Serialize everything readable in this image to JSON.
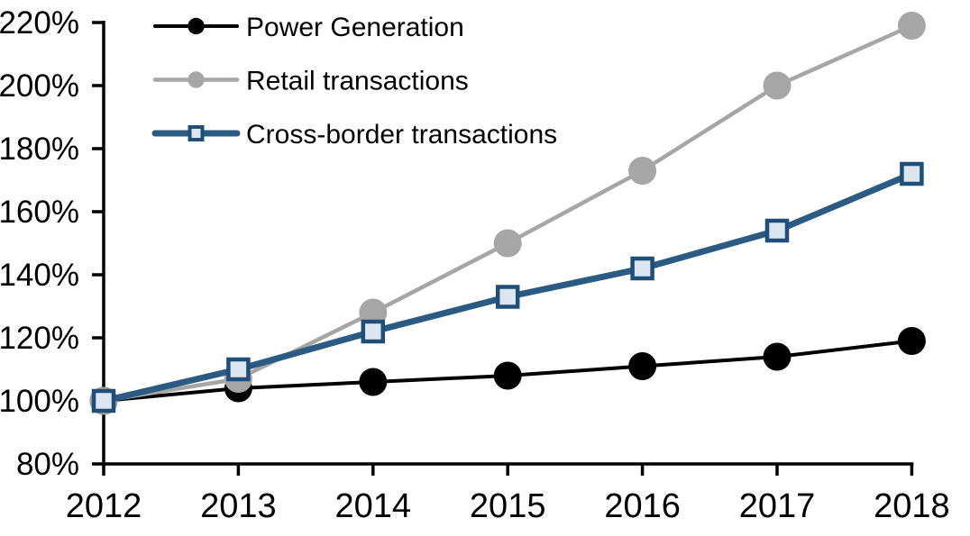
{
  "chart_data": {
    "type": "line",
    "title": "",
    "xlabel": "",
    "ylabel": "",
    "x_labels": [
      "2012",
      "2013",
      "2014",
      "2015",
      "2016",
      "2017",
      "2018"
    ],
    "y_tick_labels": [
      "80%",
      "100%",
      "120%",
      "140%",
      "160%",
      "180%",
      "200%",
      "220%"
    ],
    "ylim": [
      80,
      220
    ],
    "ytick_step": 20,
    "grid": false,
    "legend_position": "top-left",
    "background_color": "#FFFFFF",
    "axis_color": "#000000",
    "series": [
      {
        "name": "Power Generation",
        "values": [
          100,
          104,
          106,
          108,
          111,
          114,
          119
        ],
        "color": "#000000",
        "marker": "circle",
        "marker_fill": "#000000",
        "marker_stroke": "#000000",
        "line_width": 4
      },
      {
        "name": "Retail transactions",
        "values": [
          100,
          107,
          128,
          150,
          173,
          200,
          219
        ],
        "color": "#A6A6A6",
        "marker": "circle",
        "marker_fill": "#A6A6A6",
        "marker_stroke": "#A6A6A6",
        "line_width": 4.5
      },
      {
        "name": "Cross-border transactions",
        "values": [
          100,
          110,
          122,
          133,
          142,
          154,
          172
        ],
        "color": "#2B5A83",
        "marker": "square",
        "marker_fill": "#DCE6F1",
        "marker_stroke": "#1F4E79",
        "line_width": 7
      }
    ]
  }
}
